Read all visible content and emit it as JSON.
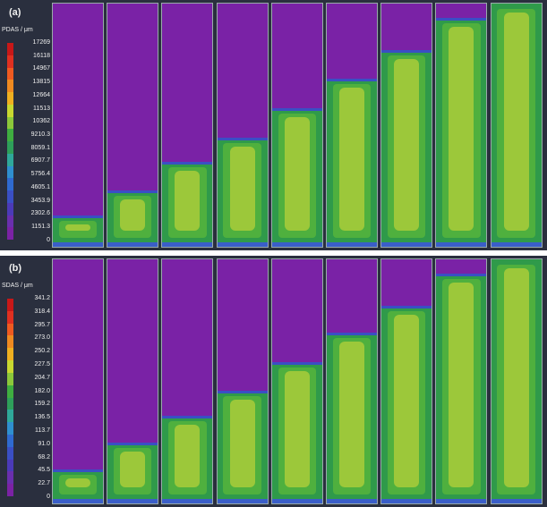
{
  "panels": [
    {
      "id": "a",
      "label": "(a)",
      "quantity": "PDAS / μm",
      "ticks": [
        "17269",
        "16118",
        "14967",
        "13815",
        "12664",
        "11513",
        "10362",
        "9210.3",
        "8059.1",
        "6907.7",
        "5756.4",
        "4605.1",
        "3453.9",
        "2302.6",
        "1151.3",
        "0"
      ],
      "solidified_fraction": [
        0.13,
        0.23,
        0.35,
        0.45,
        0.57,
        0.69,
        0.81,
        0.94,
        1.0
      ]
    },
    {
      "id": "b",
      "label": "(b)",
      "quantity": "SDAS / μm",
      "ticks": [
        "341.2",
        "318.4",
        "295.7",
        "273.0",
        "250.2",
        "227.5",
        "204.7",
        "182.0",
        "159.2",
        "136.5",
        "113.7",
        "91.0",
        "68.2",
        "45.5",
        "22.7",
        "0"
      ],
      "solidified_fraction": [
        0.14,
        0.25,
        0.36,
        0.46,
        0.58,
        0.7,
        0.81,
        0.94,
        1.0
      ]
    }
  ],
  "colorbar_colors": [
    "#c81818",
    "#e03020",
    "#f05a20",
    "#f08a20",
    "#f0b020",
    "#c8d830",
    "#8cc83a",
    "#3fae40",
    "#2e9f5a",
    "#2fa89a",
    "#2f8fcf",
    "#2f6ad0",
    "#3a4fc4",
    "#4b3ab8",
    "#6a2fae",
    "#7b22a5"
  ]
}
